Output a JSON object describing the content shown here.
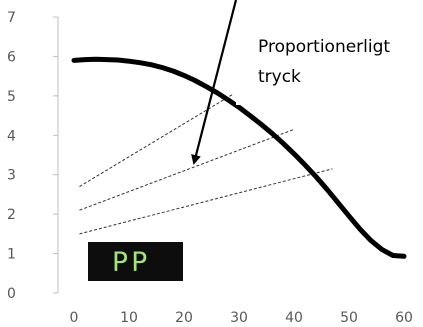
{
  "chart_data": {
    "type": "line",
    "xlim": [
      0,
      60
    ],
    "ylim": [
      0,
      7
    ],
    "x_ticks": [
      "0",
      "10",
      "20",
      "30",
      "40",
      "50",
      "60"
    ],
    "y_ticks": [
      "0",
      "1",
      "2",
      "3",
      "4",
      "5",
      "6",
      "7"
    ],
    "grid": false,
    "series": [
      {
        "x": [
          0,
          2,
          4,
          6,
          8,
          10,
          12,
          14,
          16,
          18,
          20,
          22,
          24,
          26,
          28,
          30,
          32,
          34,
          36,
          38,
          40,
          42,
          44,
          46,
          48,
          50,
          52,
          54,
          56,
          58,
          60
        ],
        "y": [
          5.9,
          5.92,
          5.93,
          5.92,
          5.91,
          5.88,
          5.84,
          5.79,
          5.72,
          5.63,
          5.52,
          5.39,
          5.24,
          5.08,
          4.9,
          4.71,
          4.5,
          4.28,
          4.05,
          3.8,
          3.53,
          3.25,
          2.95,
          2.63,
          2.29,
          1.95,
          1.62,
          1.33,
          1.1,
          0.95,
          0.93
        ],
        "color": "#000000"
      }
    ],
    "reference_lines": [
      {
        "x": [
          1,
          29
        ],
        "y": [
          2.7,
          5.05
        ]
      },
      {
        "x": [
          1,
          40
        ],
        "y": [
          2.1,
          4.15
        ]
      },
      {
        "x": [
          1,
          47
        ],
        "y": [
          1.5,
          3.15
        ]
      }
    ],
    "annotations": {
      "text_line1": "Proportionerligt",
      "text_line2": "tryck",
      "badge": "PP",
      "badge_bg": "#0d0d0d",
      "badge_fg": "#a6e37a"
    }
  }
}
